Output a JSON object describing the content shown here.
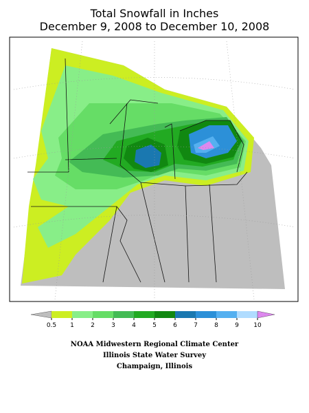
{
  "header": {
    "title": "Total Snowfall in Inches",
    "subtitle": "December 9, 2008 to December 10, 2008"
  },
  "legend": {
    "ticks": [
      0.5,
      1,
      2,
      3,
      4,
      5,
      6,
      7,
      8,
      9,
      10
    ],
    "colors": [
      "#bebebe",
      "#ccee22",
      "#88ee88",
      "#66dd66",
      "#44bb55",
      "#22aa22",
      "#118811",
      "#1a78b0",
      "#2c90d8",
      "#55b0f0",
      "#b0dcff",
      "#dd88ee"
    ]
  },
  "credits": [
    "NOAA Midwestern Regional Climate Center",
    "Illinois State Water Survey",
    "Champaign, Illinois"
  ]
}
